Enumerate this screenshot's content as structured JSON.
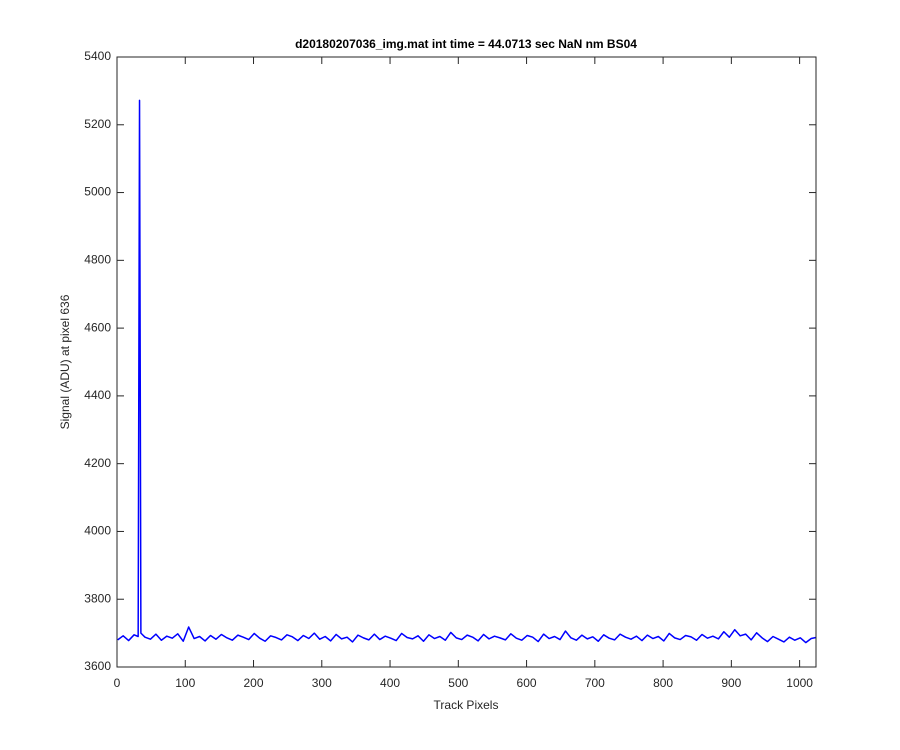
{
  "chart_data": {
    "type": "line",
    "title": "d20180207036_img.mat int time = 44.0713 sec  NaN nm BS04",
    "x_label": "Track Pixels",
    "y_label": "Signal (ADU) at pixel 636",
    "x": [
      1,
      9,
      17,
      25,
      31,
      33,
      35,
      41,
      49,
      57,
      65,
      73,
      81,
      89,
      97,
      105,
      113,
      121,
      129,
      137,
      145,
      153,
      161,
      169,
      177,
      185,
      193,
      201,
      209,
      217,
      225,
      233,
      241,
      249,
      257,
      265,
      273,
      281,
      289,
      297,
      305,
      313,
      321,
      329,
      337,
      345,
      353,
      361,
      369,
      377,
      385,
      393,
      401,
      409,
      417,
      425,
      433,
      441,
      449,
      457,
      465,
      473,
      481,
      489,
      497,
      505,
      513,
      521,
      529,
      537,
      545,
      553,
      561,
      569,
      577,
      585,
      593,
      601,
      609,
      617,
      625,
      633,
      641,
      649,
      657,
      665,
      673,
      681,
      689,
      697,
      705,
      713,
      721,
      729,
      737,
      745,
      753,
      761,
      769,
      777,
      785,
      793,
      801,
      809,
      817,
      825,
      833,
      841,
      849,
      857,
      865,
      873,
      881,
      889,
      897,
      905,
      913,
      921,
      929,
      937,
      945,
      953,
      961,
      969,
      977,
      985,
      993,
      1001,
      1009,
      1017,
      1024
    ],
    "series": [
      {
        "name": "signal",
        "color": "#0000ff",
        "values": [
          3680,
          3692,
          3678,
          3695,
          3690,
          5272,
          3700,
          3688,
          3682,
          3697,
          3679,
          3691,
          3685,
          3698,
          3676,
          3718,
          3684,
          3690,
          3677,
          3693,
          3682,
          3696,
          3686,
          3679,
          3694,
          3688,
          3681,
          3699,
          3685,
          3676,
          3692,
          3687,
          3680,
          3695,
          3689,
          3678,
          3693,
          3684,
          3700,
          3682,
          3690,
          3677,
          3696,
          3683,
          3688,
          3674,
          3694,
          3686,
          3680,
          3697,
          3681,
          3691,
          3685,
          3678,
          3699,
          3687,
          3683,
          3692,
          3676,
          3695,
          3684,
          3690,
          3679,
          3702,
          3686,
          3681,
          3694,
          3688,
          3677,
          3696,
          3683,
          3691,
          3686,
          3680,
          3698,
          3685,
          3679,
          3693,
          3688,
          3675,
          3697,
          3684,
          3690,
          3681,
          3706,
          3686,
          3679,
          3694,
          3683,
          3689,
          3676,
          3695,
          3685,
          3680,
          3697,
          3688,
          3682,
          3691,
          3678,
          3694,
          3684,
          3690,
          3677,
          3699,
          3686,
          3681,
          3693,
          3689,
          3679,
          3696,
          3685,
          3691,
          3683,
          3704,
          3688,
          3710,
          3692,
          3697,
          3680,
          3701,
          3686,
          3675,
          3690,
          3682,
          3674,
          3688,
          3679,
          3686,
          3672,
          3684,
          3687
        ]
      }
    ],
    "xlim": [
      0,
      1024
    ],
    "xticks": [
      0,
      100,
      200,
      300,
      400,
      500,
      600,
      700,
      800,
      900,
      1000
    ],
    "ylim": [
      3600,
      5400
    ],
    "yticks": [
      3600,
      3800,
      4000,
      4200,
      4400,
      4600,
      4800,
      5000,
      5200,
      5400
    ]
  }
}
